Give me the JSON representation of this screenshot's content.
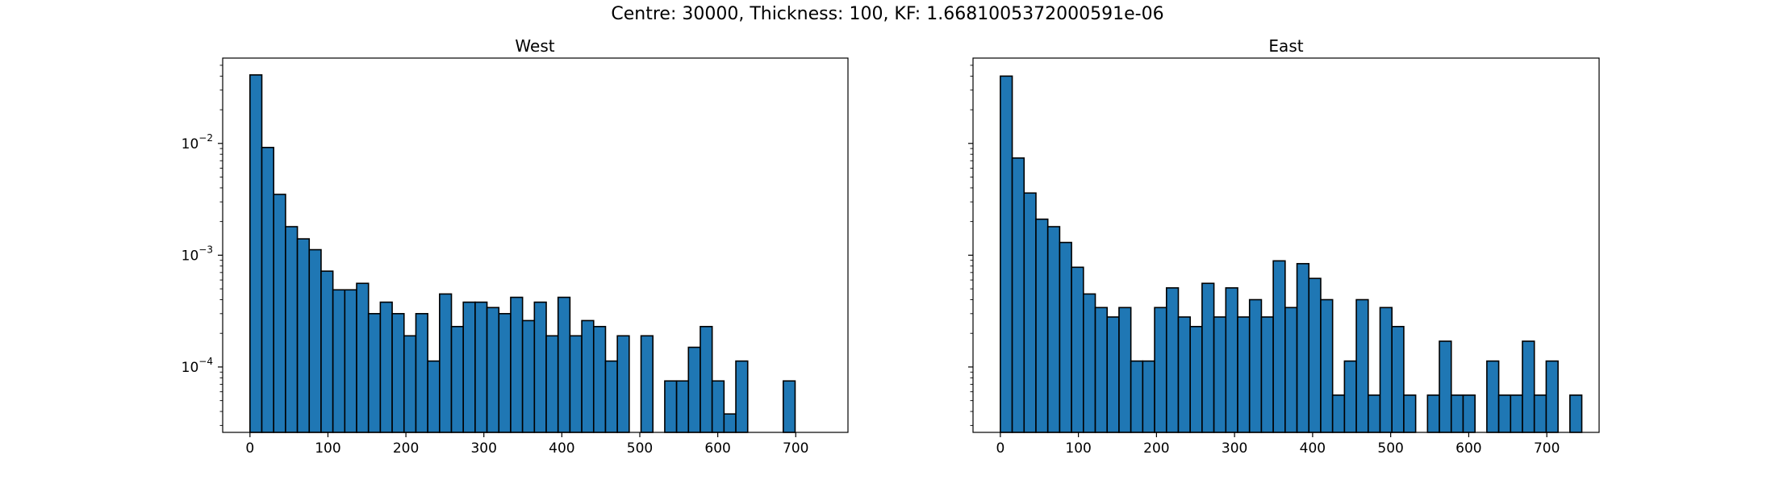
{
  "figure": {
    "suptitle": "Centre: 30000, Thickness: 100, KF: 1.6681005372000591e-06"
  },
  "chart_data": [
    {
      "type": "bar",
      "title": "West",
      "xlabel": "",
      "ylabel": "",
      "yscale": "log",
      "xlim": [
        -35,
        767
      ],
      "ylim": [
        2.6e-05,
        0.058
      ],
      "xticks": [
        "0",
        "100",
        "200",
        "300",
        "400",
        "500",
        "600",
        "700"
      ],
      "yticks": [
        {
          "mantissa": "10",
          "exp": "−2",
          "value": 0.01
        },
        {
          "mantissa": "10",
          "exp": "−3",
          "value": 0.001
        },
        {
          "mantissa": "10",
          "exp": "−4",
          "value": 0.0001
        }
      ],
      "bin_width": 15.2,
      "bin_start": 0,
      "values": [
        0.041,
        0.0092,
        0.0035,
        0.0018,
        0.0014,
        0.00112,
        0.00072,
        0.00049,
        0.00049,
        0.00056,
        0.0003,
        0.00038,
        0.0003,
        0.00019,
        0.0003,
        0.000113,
        0.00045,
        0.00023,
        0.00038,
        0.00038,
        0.00034,
        0.0003,
        0.00042,
        0.00026,
        0.00038,
        0.00019,
        0.00042,
        0.00019,
        0.00026,
        0.00023,
        0.000113,
        0.00019,
        0,
        0.00019,
        0,
        7.5e-05,
        7.5e-05,
        0.00015,
        0.00023,
        7.5e-05,
        3.8e-05,
        0.000113,
        0,
        0,
        0,
        7.5e-05,
        0,
        0
      ],
      "bar_color": "#1f77b4"
    },
    {
      "type": "bar",
      "title": "East",
      "xlabel": "",
      "ylabel": "",
      "yscale": "log",
      "xlim": [
        -35,
        767
      ],
      "ylim": [
        2.6e-05,
        0.058
      ],
      "xticks": [
        "0",
        "100",
        "200",
        "300",
        "400",
        "500",
        "600",
        "700"
      ],
      "bin_width": 15.2,
      "bin_start": 0,
      "values": [
        0.04,
        0.0074,
        0.0036,
        0.0021,
        0.0018,
        0.0013,
        0.00078,
        0.00045,
        0.00034,
        0.00028,
        0.00034,
        0.000113,
        0.000113,
        0.00034,
        0.00051,
        0.00028,
        0.00023,
        0.00056,
        0.00028,
        0.00051,
        0.00028,
        0.0004,
        0.00028,
        0.00089,
        0.00034,
        0.00084,
        0.00062,
        0.0004,
        5.6e-05,
        0.000113,
        0.0004,
        5.6e-05,
        0.00034,
        0.00023,
        5.6e-05,
        0,
        5.6e-05,
        0.00017,
        5.6e-05,
        5.6e-05,
        0,
        0.000113,
        5.6e-05,
        5.6e-05,
        0.00017,
        5.6e-05,
        0.000113,
        0,
        5.6e-05
      ],
      "bar_color": "#1f77b4"
    }
  ]
}
